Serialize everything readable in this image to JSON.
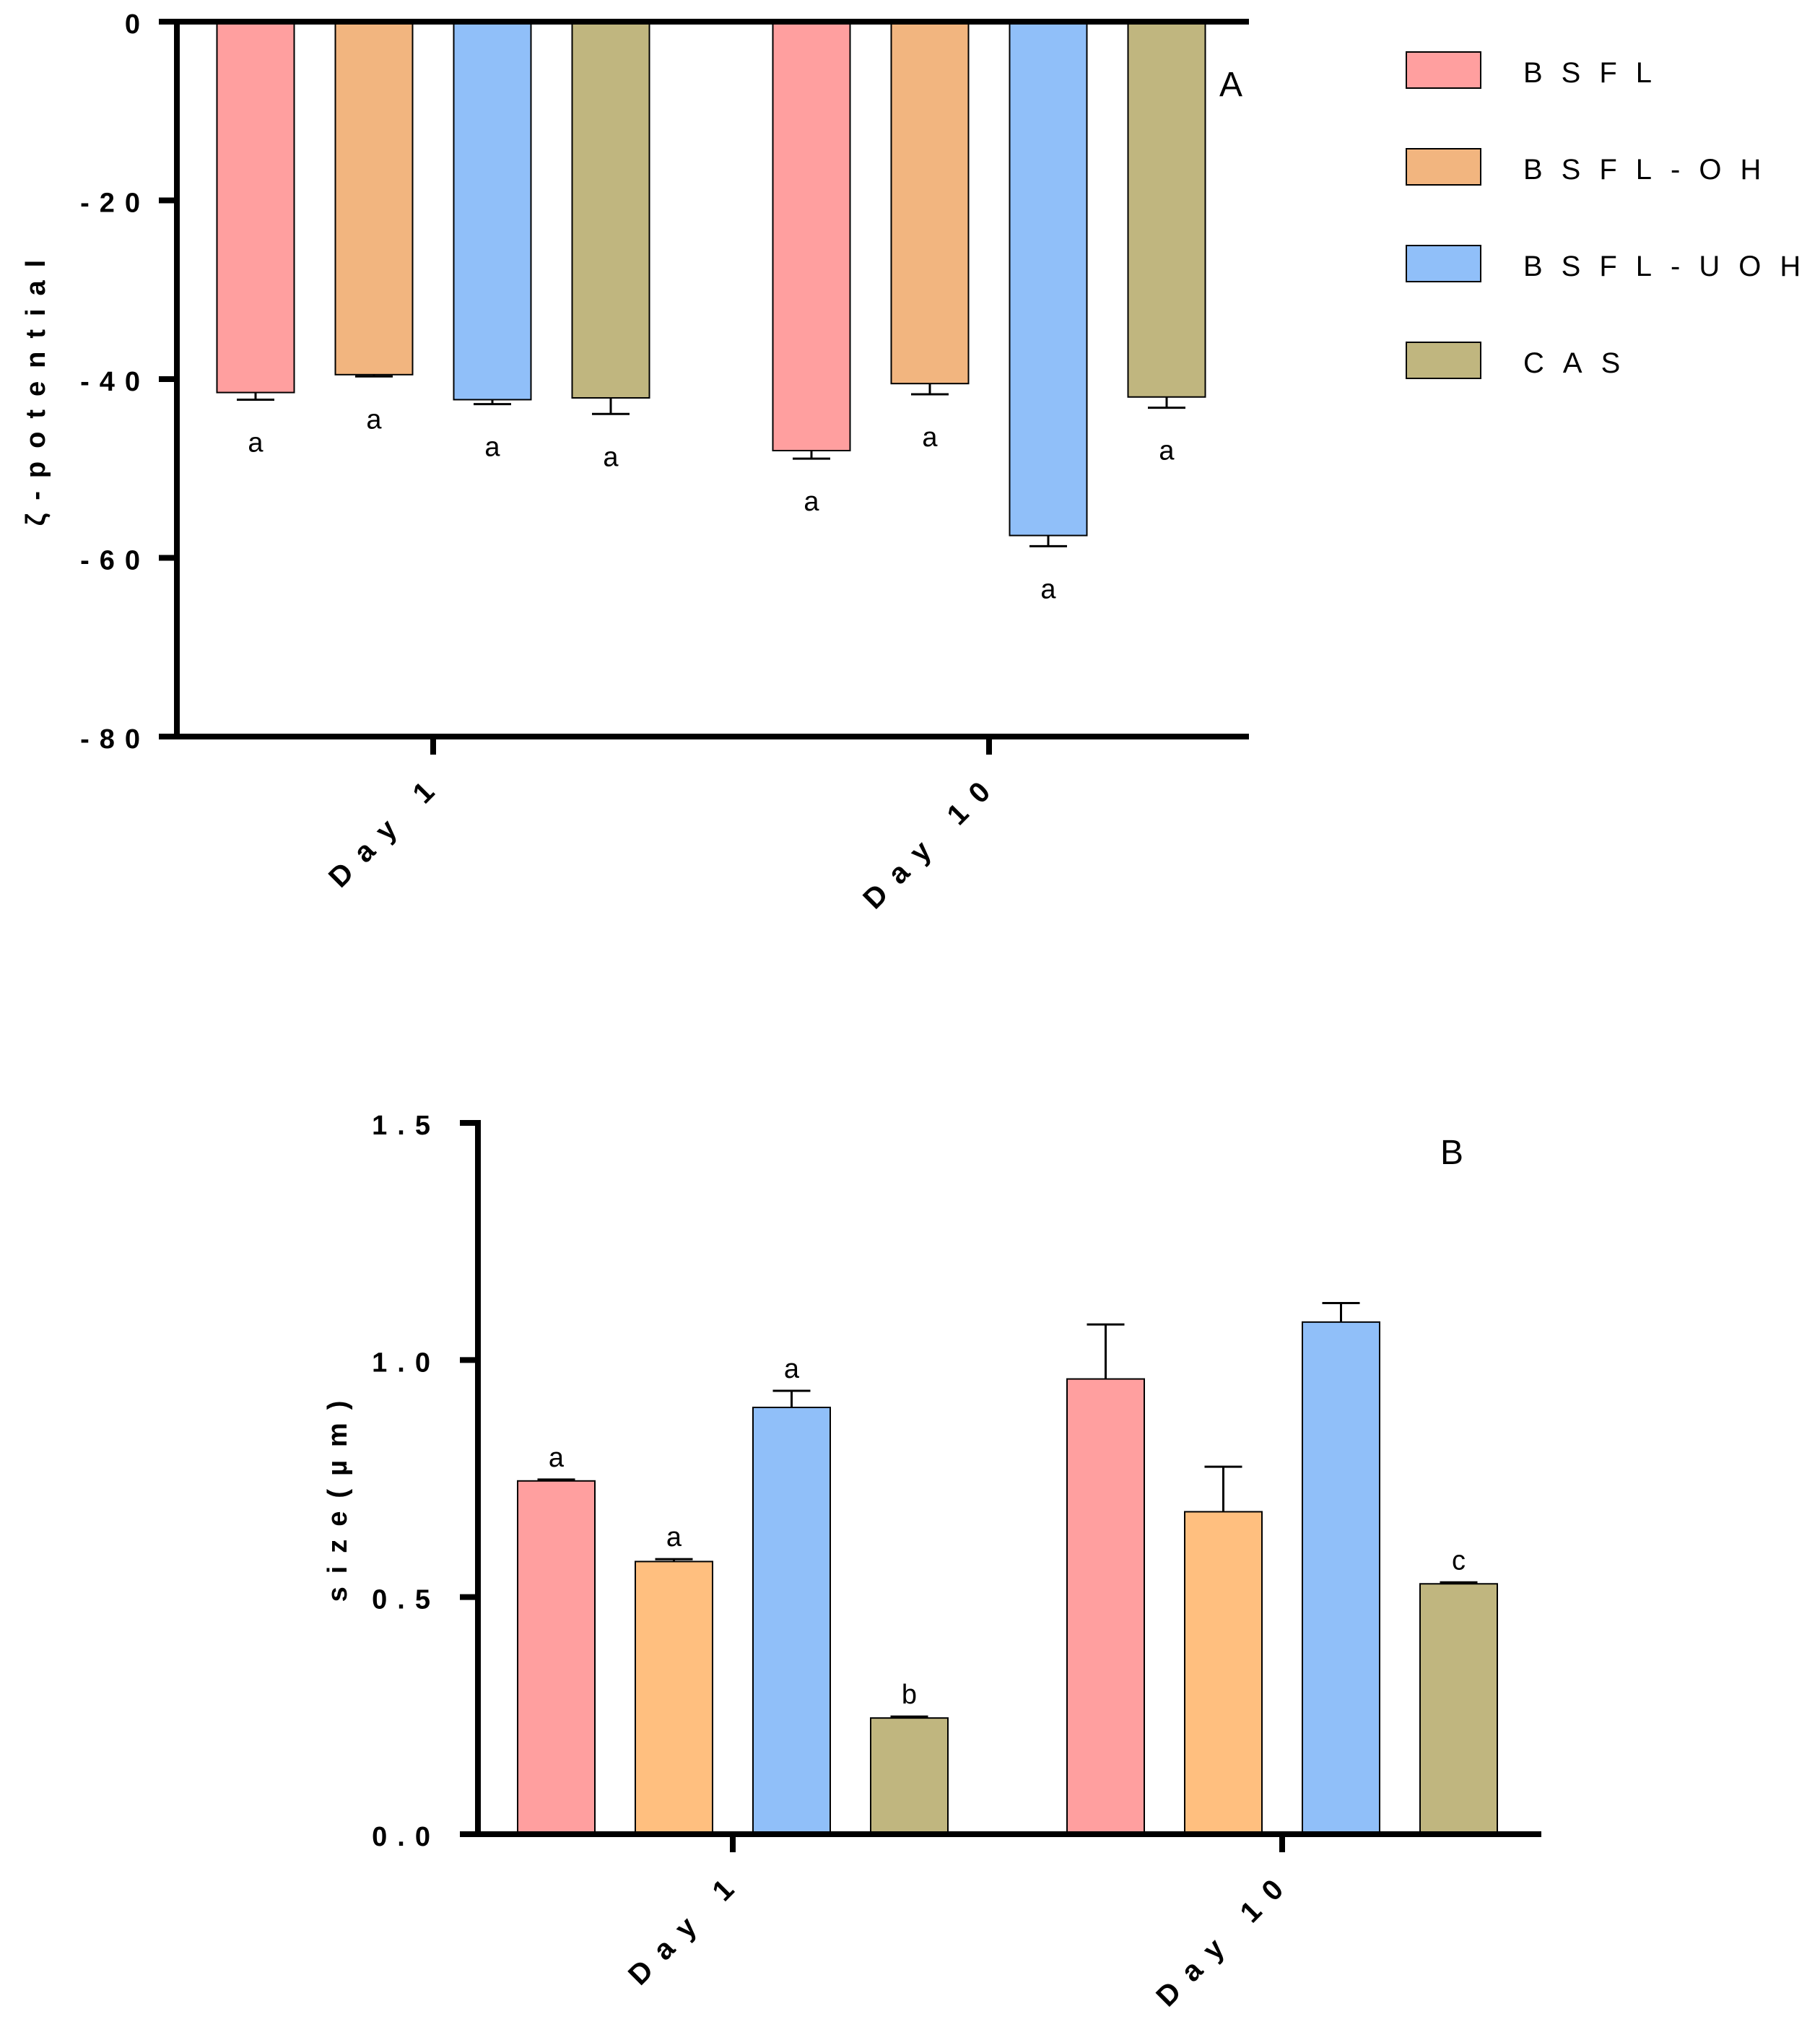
{
  "chart_data": [
    {
      "type": "bar",
      "panel": "A",
      "ylabel": "ζ-potential",
      "xlabel": "",
      "ylim": [
        -80,
        0
      ],
      "yticks": [
        "0",
        "-20",
        "-40",
        "-60",
        "-80"
      ],
      "ytick_values": [
        0,
        -20,
        -40,
        -60,
        -80
      ],
      "categories": [
        "Day 1",
        "Day 10"
      ],
      "series": [
        {
          "name": "BSFL",
          "values": [
            -41.5,
            -48.0
          ],
          "errors": [
            0.8,
            0.9
          ],
          "letters": [
            "a",
            "a"
          ]
        },
        {
          "name": "BSFL-OH",
          "values": [
            -39.5,
            -40.5
          ],
          "errors": [
            0.2,
            1.2
          ],
          "letters": [
            "a",
            "a"
          ]
        },
        {
          "name": "BSFL-UOH",
          "values": [
            -42.3,
            -57.5
          ],
          "errors": [
            0.5,
            1.2
          ],
          "letters": [
            "a",
            "a"
          ]
        },
        {
          "name": "CAS",
          "values": [
            -42.1,
            -42.0
          ],
          "errors": [
            1.8,
            1.2
          ],
          "letters": [
            "a",
            "a"
          ]
        }
      ],
      "legend_position": "right"
    },
    {
      "type": "bar",
      "panel": "B",
      "ylabel": "size(µm)",
      "xlabel": "",
      "ylim": [
        0,
        1.5
      ],
      "yticks": [
        "0.0",
        "0.5",
        "1.0",
        "1.5"
      ],
      "ytick_values": [
        0,
        0.5,
        1.0,
        1.5
      ],
      "categories": [
        "Day 1",
        "Day 10"
      ],
      "series": [
        {
          "name": "BSFL",
          "values": [
            0.745,
            0.96
          ],
          "errors": [
            0.003,
            0.115
          ],
          "letters": [
            "a",
            ""
          ]
        },
        {
          "name": "BSFL-OH",
          "values": [
            0.575,
            0.68
          ],
          "errors": [
            0.005,
            0.095
          ],
          "letters": [
            "a",
            ""
          ]
        },
        {
          "name": "BSFL-UOH",
          "values": [
            0.9,
            1.08
          ],
          "errors": [
            0.035,
            0.04
          ],
          "letters": [
            "a",
            ""
          ]
        },
        {
          "name": "CAS",
          "values": [
            0.245,
            0.528
          ],
          "errors": [
            0.003,
            0.003
          ],
          "letters": [
            "b",
            "c"
          ]
        }
      ]
    }
  ],
  "legend": {
    "entries": [
      "BSFL",
      "BSFL-OH",
      "BSFL-UOH",
      "CAS"
    ]
  },
  "colors": {
    "panelA": [
      "#ff9f9f",
      "#f2b57f",
      "#90bff9",
      "#c0b67f"
    ],
    "panelB": [
      "#ff9f9f",
      "#ffbf7f",
      "#90bff9",
      "#c0b67f"
    ],
    "axis": "#000000"
  }
}
